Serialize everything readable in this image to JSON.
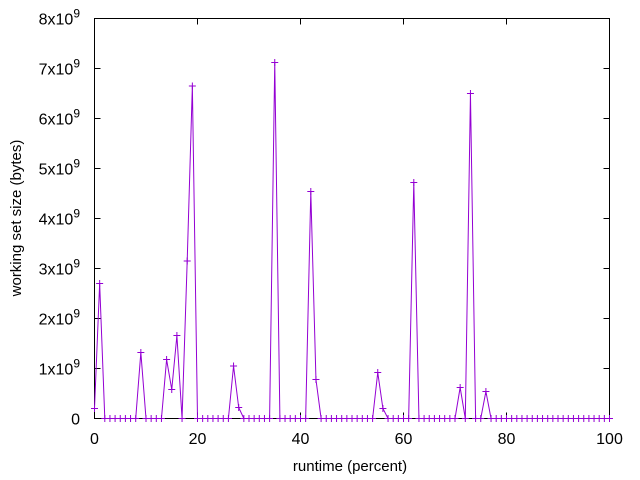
{
  "chart_data": {
    "type": "line",
    "title": "",
    "xlabel": "runtime (percent)",
    "ylabel": "working set size (bytes)",
    "xlim": [
      0,
      100
    ],
    "ylim": [
      0,
      8000000000
    ],
    "x_ticks": [
      0,
      20,
      40,
      60,
      80,
      100
    ],
    "x_tick_labels": [
      "0",
      "20",
      "40",
      "60",
      "80",
      "100"
    ],
    "y_ticks": [
      0,
      1000000000,
      2000000000,
      3000000000,
      4000000000,
      5000000000,
      6000000000,
      7000000000,
      8000000000
    ],
    "y_tick_labels": [
      {
        "mantissa": "0",
        "exp": ""
      },
      {
        "mantissa": "1x10",
        "exp": "9"
      },
      {
        "mantissa": "2x10",
        "exp": "9"
      },
      {
        "mantissa": "3x10",
        "exp": "9"
      },
      {
        "mantissa": "4x10",
        "exp": "9"
      },
      {
        "mantissa": "5x10",
        "exp": "9"
      },
      {
        "mantissa": "6x10",
        "exp": "9"
      },
      {
        "mantissa": "7x10",
        "exp": "9"
      },
      {
        "mantissa": "8x10",
        "exp": "9"
      }
    ],
    "grid": false,
    "legend": "none",
    "markers": "plus",
    "color": "#9400d3",
    "series": [
      {
        "x": [
          0,
          1,
          2,
          3,
          4,
          5,
          6,
          7,
          8,
          9,
          10,
          11,
          12,
          13,
          14,
          15,
          16,
          17,
          18,
          19,
          20,
          21,
          22,
          23,
          24,
          25,
          26,
          27,
          28,
          29,
          30,
          31,
          32,
          33,
          34,
          35,
          36,
          37,
          38,
          39,
          40,
          41,
          42,
          43,
          44,
          45,
          46,
          47,
          48,
          49,
          50,
          51,
          52,
          53,
          54,
          55,
          56,
          57,
          58,
          59,
          60,
          61,
          62,
          63,
          64,
          65,
          66,
          67,
          68,
          69,
          70,
          71,
          72,
          73,
          74,
          75,
          76,
          77,
          78,
          79,
          80,
          81,
          82,
          83,
          84,
          85,
          86,
          87,
          88,
          89,
          90,
          91,
          92,
          93,
          94,
          95,
          96,
          97,
          98,
          99,
          100
        ],
        "y": [
          200000000,
          2700000000,
          0,
          0,
          0,
          0,
          0,
          0,
          0,
          1320000000,
          0,
          0,
          0,
          0,
          1180000000,
          580000000,
          1660000000,
          0,
          3150000000,
          6650000000,
          0,
          0,
          0,
          0,
          0,
          0,
          0,
          1050000000,
          220000000,
          0,
          0,
          0,
          0,
          0,
          0,
          7120000000,
          0,
          0,
          0,
          0,
          0,
          0,
          4540000000,
          780000000,
          0,
          0,
          0,
          0,
          0,
          0,
          0,
          0,
          0,
          0,
          0,
          920000000,
          200000000,
          0,
          0,
          0,
          0,
          0,
          4720000000,
          0,
          0,
          0,
          0,
          0,
          0,
          0,
          0,
          620000000,
          0,
          6500000000,
          0,
          0,
          540000000,
          0,
          0,
          0,
          0,
          0,
          0,
          0,
          0,
          0,
          0,
          0,
          0,
          0,
          0,
          0,
          0,
          0,
          0,
          0,
          0,
          0,
          0,
          0,
          0
        ]
      }
    ]
  }
}
